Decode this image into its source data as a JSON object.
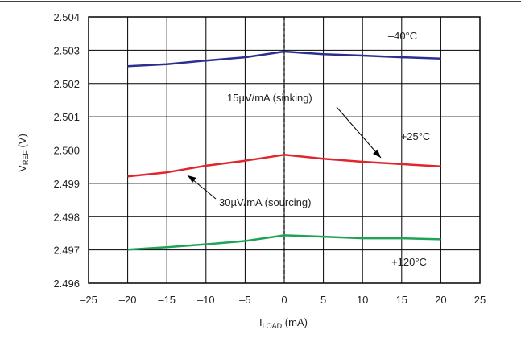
{
  "chart_data": {
    "type": "line",
    "title": "",
    "xlabel": {
      "main": "I",
      "sub": "LOAD",
      "unit": " (mA)"
    },
    "ylabel": {
      "main": "V",
      "sub": "REF",
      "unit": " (V)"
    },
    "xlim": [
      -25,
      25
    ],
    "ylim": [
      2.496,
      2.504
    ],
    "xticks": [
      "–25",
      "–20",
      "–15",
      "–10",
      "–5",
      "0",
      "5",
      "10",
      "15",
      "20",
      "25"
    ],
    "yticks": [
      "2.504",
      "2.503",
      "2.502",
      "2.501",
      "2.500",
      "2.499",
      "2.498",
      "2.497",
      "2.496"
    ],
    "grid": true,
    "series": [
      {
        "name": "–40°C",
        "color": "#2b2f8f",
        "x": [
          -20,
          -15,
          -10,
          -5,
          0,
          5,
          10,
          15,
          20
        ],
        "y": [
          2.50252,
          2.50258,
          2.50269,
          2.50279,
          2.50296,
          2.50288,
          2.50284,
          2.50279,
          2.50275
        ]
      },
      {
        "name": "+25°C",
        "color": "#e0262c",
        "x": [
          -20,
          -15,
          -10,
          -5,
          0,
          5,
          10,
          15,
          20
        ],
        "y": [
          2.49921,
          2.49933,
          2.49953,
          2.49968,
          2.49986,
          2.49974,
          2.49965,
          2.49958,
          2.49951
        ]
      },
      {
        "name": "+120°C",
        "color": "#1fa355",
        "x": [
          -20,
          -15,
          -10,
          -5,
          0,
          5,
          10,
          15,
          20
        ],
        "y": [
          2.49701,
          2.49708,
          2.49717,
          2.49727,
          2.49744,
          2.4974,
          2.49735,
          2.49735,
          2.49732
        ]
      }
    ],
    "annotations": {
      "sinking": "15µV/mA (sinking)",
      "sourcing": "30µV/mA (sourcing)"
    }
  }
}
